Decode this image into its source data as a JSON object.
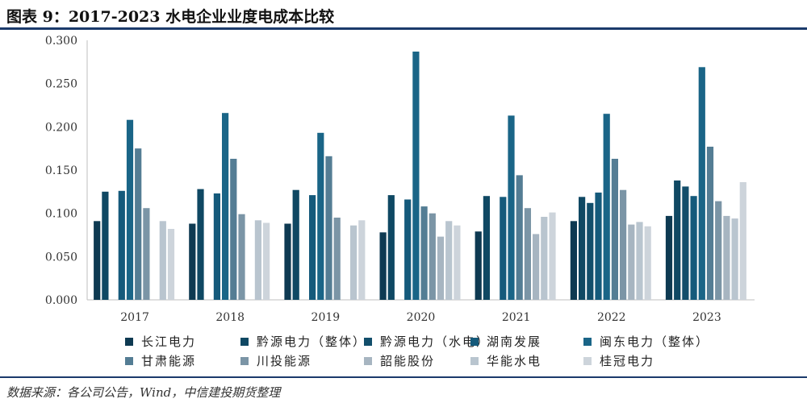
{
  "header": {
    "title": "图表 9：2017-2023 水电企业业度电成本比较"
  },
  "footer": {
    "source": "数据来源：各公司公告，Wind，中信建投期货整理"
  },
  "chart_data": {
    "type": "bar",
    "categories": [
      "2017",
      "2018",
      "2019",
      "2020",
      "2021",
      "2022",
      "2023"
    ],
    "ylim": [
      0,
      0.3
    ],
    "yticks": [
      "0.000",
      "0.050",
      "0.100",
      "0.150",
      "0.200",
      "0.250",
      "0.300"
    ],
    "legend_position": "bottom",
    "series": [
      {
        "name": "长江电力",
        "color": "#0e3a52",
        "values": [
          0.091,
          0.088,
          0.088,
          0.078,
          0.079,
          0.091,
          0.097
        ]
      },
      {
        "name": "黔源电力（整体）",
        "color": "#0f4863",
        "values": [
          0.125,
          0.128,
          0.127,
          0.121,
          0.12,
          0.119,
          0.138
        ]
      },
      {
        "name": "黔源电力（水电）",
        "color": "#124e6b",
        "values": [
          null,
          null,
          null,
          null,
          null,
          0.112,
          0.131
        ]
      },
      {
        "name": "湖南发展",
        "color": "#155a7b",
        "values": [
          0.126,
          0.123,
          0.121,
          0.116,
          0.119,
          0.124,
          0.12
        ]
      },
      {
        "name": "闽东电力（整体）",
        "color": "#1a6587",
        "values": [
          0.208,
          0.216,
          0.193,
          0.287,
          0.213,
          0.215,
          0.269
        ]
      },
      {
        "name": "甘肃能源",
        "color": "#547d94",
        "values": [
          0.175,
          0.163,
          0.166,
          0.108,
          0.144,
          0.163,
          0.177
        ]
      },
      {
        "name": "川投能源",
        "color": "#7b95a6",
        "values": [
          0.106,
          0.099,
          0.095,
          0.1,
          0.106,
          0.127,
          0.114
        ]
      },
      {
        "name": "韶能股份",
        "color": "#a7b5c1",
        "values": [
          null,
          null,
          null,
          0.073,
          0.076,
          0.087,
          0.097
        ]
      },
      {
        "name": "华能水电",
        "color": "#b9c5cf",
        "values": [
          0.091,
          0.092,
          0.086,
          0.091,
          0.096,
          0.09,
          0.094
        ]
      },
      {
        "name": "桂冠电力",
        "color": "#cdd4db",
        "values": [
          0.082,
          0.089,
          0.092,
          0.086,
          0.101,
          0.085,
          0.136
        ]
      }
    ]
  }
}
